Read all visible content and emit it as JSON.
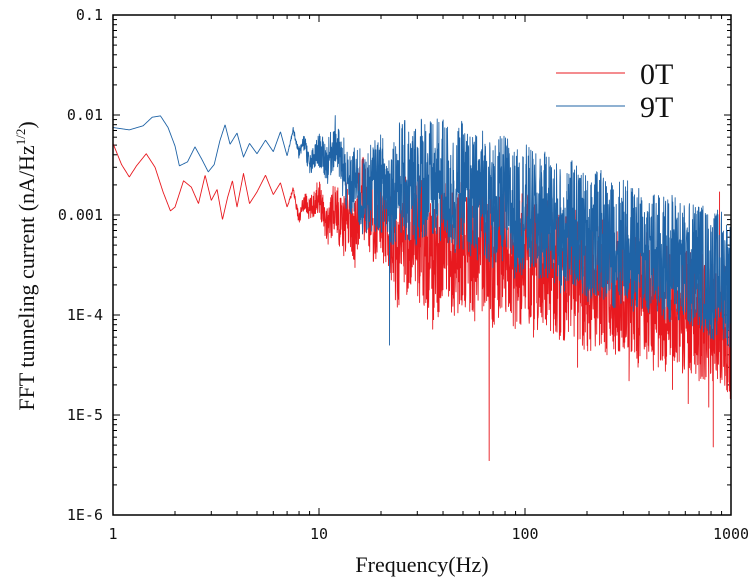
{
  "chart_data": {
    "type": "line",
    "title": "",
    "xlabel": "Frequency(Hz)",
    "ylabel": "FFT tunneling current (nA/Hz",
    "ylabel_superscript": "1/2",
    "ylabel_suffix": ")",
    "xscale": "log",
    "yscale": "log",
    "xlim": [
      1,
      1000
    ],
    "ylim": [
      1e-06,
      0.1
    ],
    "x_ticks": [
      {
        "value": 1,
        "label": "1"
      },
      {
        "value": 10,
        "label": "10"
      },
      {
        "value": 100,
        "label": "100"
      },
      {
        "value": 1000,
        "label": "1000"
      }
    ],
    "y_ticks": [
      {
        "value": 0.1,
        "label": "0.1"
      },
      {
        "value": 0.01,
        "label": "0.01"
      },
      {
        "value": 0.001,
        "label": "0.001"
      },
      {
        "value": 0.0001,
        "label": "1E-4"
      },
      {
        "value": 1e-05,
        "label": "1E-5"
      },
      {
        "value": 1e-06,
        "label": "1E-6"
      }
    ],
    "legend_position": "top-right",
    "series": [
      {
        "name": "0T",
        "color": "#e8191f",
        "points": [
          [
            1,
            0.0052
          ],
          [
            1.1,
            0.0032
          ],
          [
            1.2,
            0.0024
          ],
          [
            1.3,
            0.0031
          ],
          [
            1.45,
            0.0041
          ],
          [
            1.6,
            0.003
          ],
          [
            1.75,
            0.0017
          ],
          [
            1.9,
            0.0011
          ],
          [
            2.0,
            0.0012
          ],
          [
            2.2,
            0.0022
          ],
          [
            2.4,
            0.0019
          ],
          [
            2.6,
            0.0013
          ],
          [
            2.8,
            0.0025
          ],
          [
            3.0,
            0.0014
          ],
          [
            3.2,
            0.0018
          ],
          [
            3.4,
            0.0009
          ],
          [
            3.6,
            0.0015
          ],
          [
            3.8,
            0.0022
          ],
          [
            4.0,
            0.0012
          ],
          [
            4.3,
            0.0026
          ],
          [
            4.6,
            0.0013
          ],
          [
            5.0,
            0.0017
          ],
          [
            5.5,
            0.0025
          ],
          [
            6.0,
            0.0016
          ],
          [
            6.5,
            0.0021
          ],
          [
            7.0,
            0.0012
          ],
          [
            7.5,
            0.0018
          ],
          [
            8.0,
            0.0009
          ],
          [
            8.5,
            0.0014
          ],
          [
            9.0,
            0.0011
          ],
          [
            10,
            0.0016
          ],
          [
            11,
            0.0008
          ],
          [
            12,
            0.0013
          ],
          [
            13,
            0.0007
          ],
          [
            14,
            0.0011
          ],
          [
            15,
            0.0006
          ],
          [
            16,
            0.0017
          ],
          [
            18,
            0.0009
          ],
          [
            20,
            0.0012
          ],
          [
            22,
            0.0006
          ],
          [
            25,
            0.00045
          ],
          [
            28,
            0.0009
          ],
          [
            32,
            0.0005
          ],
          [
            36,
            0.0003
          ],
          [
            40,
            0.0006
          ],
          [
            45,
            0.0004
          ],
          [
            50,
            0.00055
          ],
          [
            56,
            0.00035
          ],
          [
            63,
            0.0005
          ],
          [
            70,
            0.00032
          ],
          [
            80,
            0.00045
          ],
          [
            90,
            0.0003
          ],
          [
            100,
            0.0004
          ],
          [
            115,
            0.00028
          ],
          [
            130,
            0.00033
          ],
          [
            150,
            0.00022
          ],
          [
            170,
            0.00028
          ],
          [
            200,
            0.00018
          ],
          [
            230,
            0.00022
          ],
          [
            260,
            0.00016
          ],
          [
            300,
            0.0002
          ],
          [
            350,
            0.00013
          ],
          [
            400,
            0.00016
          ],
          [
            460,
            0.00011
          ],
          [
            530,
            0.00014
          ],
          [
            600,
            0.0001
          ],
          [
            700,
            0.00011
          ],
          [
            800,
            7e-05
          ],
          [
            900,
            9e-05
          ],
          [
            1000,
            6e-05
          ]
        ],
        "spikes": [
          [
            13.5,
            0.0021
          ],
          [
            19,
            0.0018
          ],
          [
            24,
            0.00012
          ],
          [
            36,
            9e-05
          ],
          [
            48,
            0.0023
          ],
          [
            67,
            3.5e-06
          ],
          [
            85,
            0.00011
          ],
          [
            110,
            6e-05
          ],
          [
            140,
            0.0011
          ],
          [
            180,
            3e-05
          ],
          [
            250,
            4e-05
          ],
          [
            320,
            2.2e-05
          ],
          [
            420,
            2.8e-05
          ],
          [
            520,
            1.8e-05
          ],
          [
            620,
            1.3e-05
          ],
          [
            700,
            2.2e-05
          ],
          [
            780,
            1.2e-05
          ],
          [
            820,
            4.8e-06
          ],
          [
            880,
            0.0017
          ],
          [
            950,
            3e-05
          ]
        ]
      },
      {
        "name": "9T",
        "color": "#1f63a6",
        "points": [
          [
            1,
            0.0075
          ],
          [
            1.2,
            0.0071
          ],
          [
            1.4,
            0.0078
          ],
          [
            1.55,
            0.0095
          ],
          [
            1.7,
            0.0098
          ],
          [
            1.85,
            0.0075
          ],
          [
            2.0,
            0.0049
          ],
          [
            2.1,
            0.0031
          ],
          [
            2.3,
            0.0034
          ],
          [
            2.5,
            0.0048
          ],
          [
            2.7,
            0.0036
          ],
          [
            2.9,
            0.0027
          ],
          [
            3.1,
            0.0032
          ],
          [
            3.3,
            0.0055
          ],
          [
            3.5,
            0.008
          ],
          [
            3.7,
            0.0051
          ],
          [
            4.0,
            0.0066
          ],
          [
            4.3,
            0.0038
          ],
          [
            4.6,
            0.0052
          ],
          [
            5.0,
            0.0041
          ],
          [
            5.5,
            0.0056
          ],
          [
            6.0,
            0.0043
          ],
          [
            6.5,
            0.0068
          ],
          [
            7.0,
            0.0039
          ],
          [
            7.5,
            0.0071
          ],
          [
            8.0,
            0.0042
          ],
          [
            8.5,
            0.0055
          ],
          [
            9.0,
            0.003
          ],
          [
            10,
            0.0045
          ],
          [
            11,
            0.0033
          ],
          [
            12,
            0.0056
          ],
          [
            13,
            0.0028
          ],
          [
            14,
            0.0018
          ],
          [
            15,
            0.0023
          ],
          [
            16,
            0.0014
          ],
          [
            18,
            0.0019
          ],
          [
            20,
            0.0021
          ],
          [
            22,
            0.0016
          ],
          [
            25,
            0.0024
          ],
          [
            28,
            0.0018
          ],
          [
            32,
            0.0026
          ],
          [
            36,
            0.0019
          ],
          [
            40,
            0.0023
          ],
          [
            45,
            0.0016
          ],
          [
            50,
            0.002
          ],
          [
            56,
            0.0014
          ],
          [
            63,
            0.0018
          ],
          [
            70,
            0.0012
          ],
          [
            80,
            0.0015
          ],
          [
            90,
            0.001
          ],
          [
            100,
            0.0012
          ],
          [
            115,
            0.0009
          ],
          [
            130,
            0.001
          ],
          [
            150,
            0.0007
          ],
          [
            170,
            0.0008
          ],
          [
            200,
            0.0006
          ],
          [
            230,
            0.00065
          ],
          [
            260,
            0.0005
          ],
          [
            300,
            0.00055
          ],
          [
            350,
            0.00042
          ],
          [
            400,
            0.00045
          ],
          [
            460,
            0.00035
          ],
          [
            530,
            0.0004
          ],
          [
            600,
            0.0003
          ],
          [
            700,
            0.00033
          ],
          [
            800,
            0.00024
          ],
          [
            900,
            0.00027
          ],
          [
            1000,
            0.0002
          ]
        ],
        "spikes": [
          [
            13.2,
            0.0059
          ],
          [
            15.8,
            0.0046
          ],
          [
            22,
            5e-05
          ],
          [
            38,
            0.0052
          ],
          [
            45,
            0.0028
          ],
          [
            60,
            0.0036
          ],
          [
            75,
            0.0042
          ],
          [
            95,
            0.0005
          ],
          [
            120,
            0.0031
          ],
          [
            160,
            0.0026
          ],
          [
            210,
            0.0021
          ],
          [
            270,
            0.00018
          ],
          [
            330,
            0.0016
          ],
          [
            390,
            0.00012
          ],
          [
            480,
            0.0011
          ],
          [
            560,
            9e-05
          ],
          [
            650,
            0.0009
          ],
          [
            760,
            8e-05
          ],
          [
            850,
            0.0007
          ],
          [
            960,
            5e-05
          ]
        ]
      }
    ]
  }
}
